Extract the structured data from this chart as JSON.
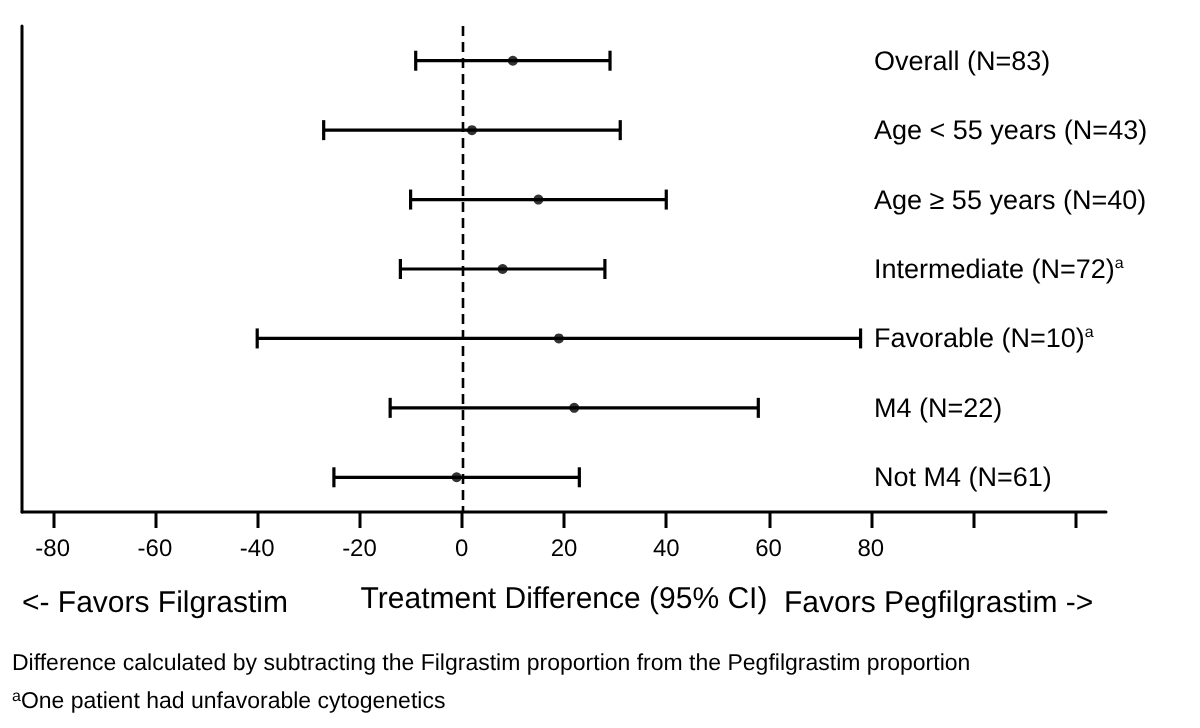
{
  "chart_data": {
    "type": "scatter",
    "orientation": "horizontal",
    "categories": [
      "Overall (N=83)",
      "Age < 55 years (N=43)",
      "Age ≥ 55 years (N=40)",
      "Intermediate (N=72)$^{a}$",
      "Favorable (N=10)$^{a}$",
      "M4 (N=22)",
      "Not M4 (N=61)"
    ],
    "values": [
      10,
      2,
      15,
      8,
      19,
      22,
      -1
    ],
    "errors": [
      [
        -9,
        29
      ],
      [
        -27,
        31
      ],
      [
        -10,
        40
      ],
      [
        -12,
        28
      ],
      [
        -40,
        78
      ],
      [
        -14,
        58
      ],
      [
        -25,
        23
      ]
    ],
    "color": "#000000",
    "marker": "circle",
    "xlim": [
      -86,
      126
    ],
    "xticks": [
      -80,
      -60,
      -40,
      -20,
      0,
      20,
      40,
      60,
      80,
      {
        "value": 100,
        "label": null
      },
      {
        "value": 120,
        "label": null
      }
    ],
    "xlabel": "Treatment Difference (95% CI)",
    "ref_lines": [
      {
        "axis": "x",
        "value": 0,
        "line_style": "dashed",
        "color": "#000000"
      }
    ],
    "annotations": [
      "<- Favors Filgrastim",
      "Favors Pegfilgrastim ->",
      "Difference calculated by subtracting the Filgrastim proportion from the Pegfilgrastim proportion",
      "$^{a}$One patient had unfavorable cytogenetics"
    ],
    "grid": false
  }
}
